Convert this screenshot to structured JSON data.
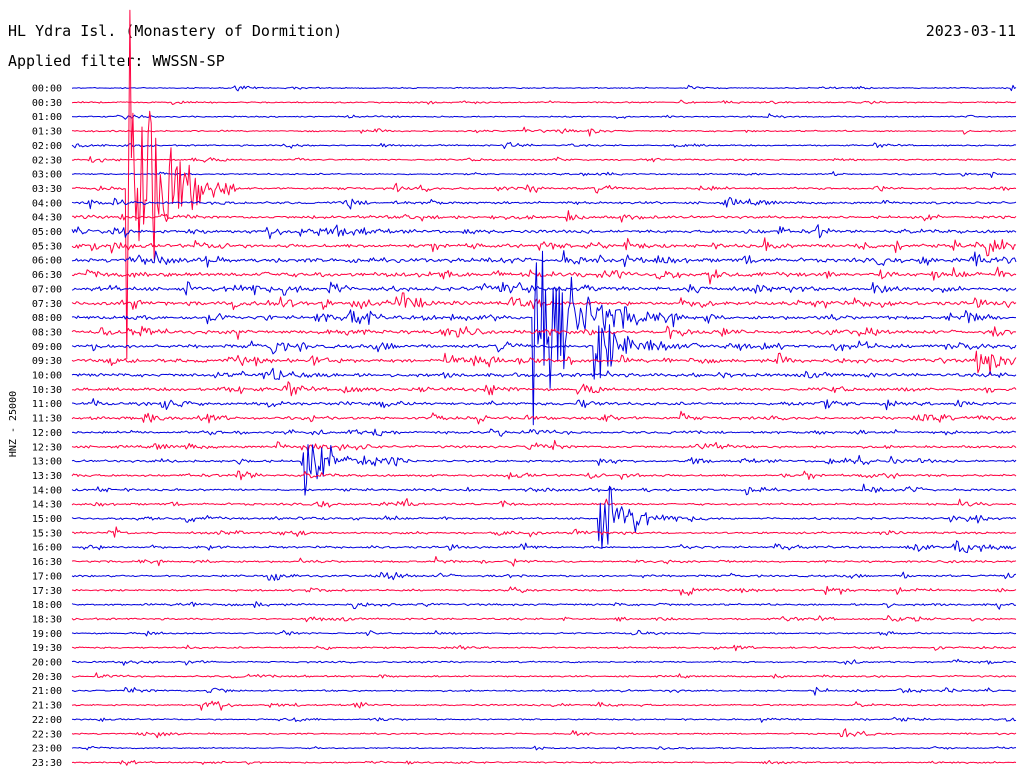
{
  "header": {
    "station": "HL Ydra Isl. (Monastery of Dormition)",
    "date": "2023-03-11",
    "filter": "Applied filter: WWSSN-SP"
  },
  "chart_data": {
    "type": "line",
    "title": "HL Ydra Isl. (Monastery of Dormition)",
    "subtitle": "Applied filter: WWSSN-SP",
    "ylabel": "HNZ - 25000",
    "xlabel": "",
    "rows": [
      "00:00",
      "00:30",
      "01:00",
      "01:30",
      "02:00",
      "02:30",
      "03:00",
      "03:30",
      "04:00",
      "04:30",
      "05:00",
      "05:30",
      "06:00",
      "06:30",
      "07:00",
      "07:30",
      "08:00",
      "08:30",
      "09:00",
      "09:30",
      "10:00",
      "10:30",
      "11:00",
      "11:30",
      "12:00",
      "12:30",
      "13:00",
      "13:30",
      "14:00",
      "14:30",
      "15:00",
      "15:30",
      "16:00",
      "16:30",
      "17:00",
      "17:30",
      "18:00",
      "18:30",
      "19:00",
      "19:30",
      "20:00",
      "20:30",
      "21:00",
      "21:30",
      "22:00",
      "22:30",
      "23:00",
      "23:30"
    ],
    "row_noise_level": [
      0.15,
      0.25,
      0.2,
      0.25,
      0.25,
      0.3,
      0.25,
      0.45,
      0.55,
      0.6,
      0.8,
      0.9,
      1.0,
      1.0,
      1.0,
      0.95,
      0.9,
      0.9,
      0.85,
      0.85,
      0.8,
      0.75,
      0.7,
      0.65,
      0.55,
      0.55,
      0.5,
      0.5,
      0.45,
      0.45,
      0.45,
      0.45,
      0.45,
      0.4,
      0.4,
      0.4,
      0.4,
      0.35,
      0.3,
      0.3,
      0.3,
      0.3,
      0.3,
      0.3,
      0.25,
      0.25,
      0.2,
      0.25
    ],
    "events": [
      {
        "row": 7,
        "t": 0.06,
        "amp": 260,
        "dur": 0.03
      },
      {
        "row": 16,
        "t": 0.49,
        "amp": 130,
        "dur": 0.04
      },
      {
        "row": 18,
        "t": 0.555,
        "amp": 55,
        "dur": 0.03
      },
      {
        "row": 19,
        "t": 0.96,
        "amp": 25,
        "dur": 0.02
      },
      {
        "row": 26,
        "t": 0.245,
        "amp": 40,
        "dur": 0.03
      },
      {
        "row": 30,
        "t": 0.56,
        "amp": 55,
        "dur": 0.03
      },
      {
        "row": 32,
        "t": 0.935,
        "amp": 16,
        "dur": 0.02
      },
      {
        "row": 34,
        "t": 0.21,
        "amp": 14,
        "dur": 0.01
      },
      {
        "row": 28,
        "t": 0.715,
        "amp": 10,
        "dur": 0.01
      },
      {
        "row": 42,
        "t": 0.875,
        "amp": 9,
        "dur": 0.01
      },
      {
        "row": 43,
        "t": 0.15,
        "amp": 8,
        "dur": 0.01
      },
      {
        "row": 8,
        "t": 0.69,
        "amp": 5,
        "dur": 0.01
      },
      {
        "row": 9,
        "t": 0.525,
        "amp": 8,
        "dur": 0.01
      },
      {
        "row": 24,
        "t": 0.32,
        "amp": 9,
        "dur": 0.01
      },
      {
        "row": 26,
        "t": 0.835,
        "amp": 8,
        "dur": 0.01
      },
      {
        "row": 22,
        "t": 0.935,
        "amp": 8,
        "dur": 0.01
      }
    ],
    "colors": {
      "even_rows": "#0000dd",
      "odd_rows": "#ff0040"
    }
  }
}
